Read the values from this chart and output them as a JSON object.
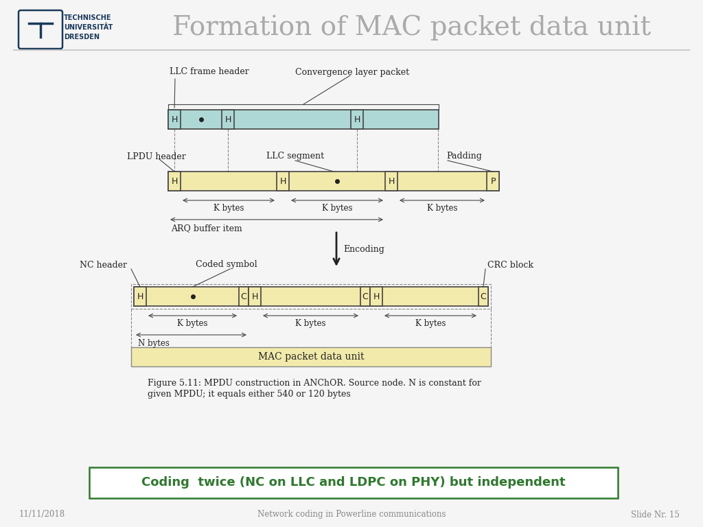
{
  "title": "Formation of MAC packet data unit",
  "slide_title_color": "#aaaaaa",
  "tud_blue": "#1a3a5c",
  "green_highlight": "#2d7a2d",
  "background": "#f5f5f5",
  "teal_fill": "#aed8d5",
  "yellow_fill": "#f2eaaa",
  "white_fill": "#ffffff",
  "border_color": "#444444",
  "dashed_color": "#888888",
  "text_color": "#222222",
  "bottom_text": "Coding  twice (NC on LLC and LDPC on PHY) but independent",
  "footer_date": "11/11/2018",
  "footer_center": "Network coding in Powerline communications",
  "footer_slide": "Slide Nr. 15",
  "caption_line1": "Figure 5.11: MPDU construction in ANChOR. Source node. N is constant for",
  "caption_line2": "given MPDU; it equals either 540 or 120 bytes"
}
